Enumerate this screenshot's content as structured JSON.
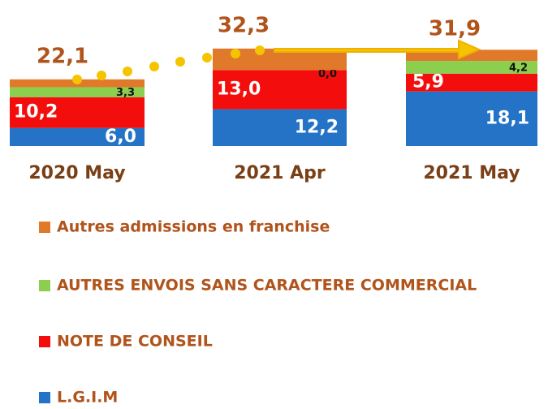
{
  "chart_data": {
    "type": "stacked_bar",
    "categories": [
      "2020 May",
      "2021 Apr",
      "2021 May"
    ],
    "series": [
      {
        "name": "L.G.I.M",
        "color": "#2473c6",
        "values": [
          6.0,
          12.2,
          18.1
        ],
        "value_labels": [
          "6,0",
          "12,2",
          "18,1"
        ]
      },
      {
        "name": "NOTE DE CONSEIL",
        "color": "#f40d0d",
        "values": [
          10.2,
          13.0,
          5.9
        ],
        "value_labels": [
          "10,2",
          "13,0",
          "5,9"
        ]
      },
      {
        "name": "AUTRES ENVOIS SANS CARACTERE COMMERCIAL",
        "color": "#8ccf4e",
        "values": [
          3.3,
          0.0,
          4.2
        ],
        "value_labels": [
          "3,3",
          "0,0",
          "4,2"
        ]
      },
      {
        "name": "Autres admissions en franchise",
        "color": "#e07a2a",
        "values": [
          2.6,
          7.1,
          3.7
        ]
      }
    ],
    "totals": {
      "values": [
        22.1,
        32.3,
        31.9
      ],
      "value_labels": [
        "22,1",
        "32,3",
        "31,9"
      ]
    }
  }
}
